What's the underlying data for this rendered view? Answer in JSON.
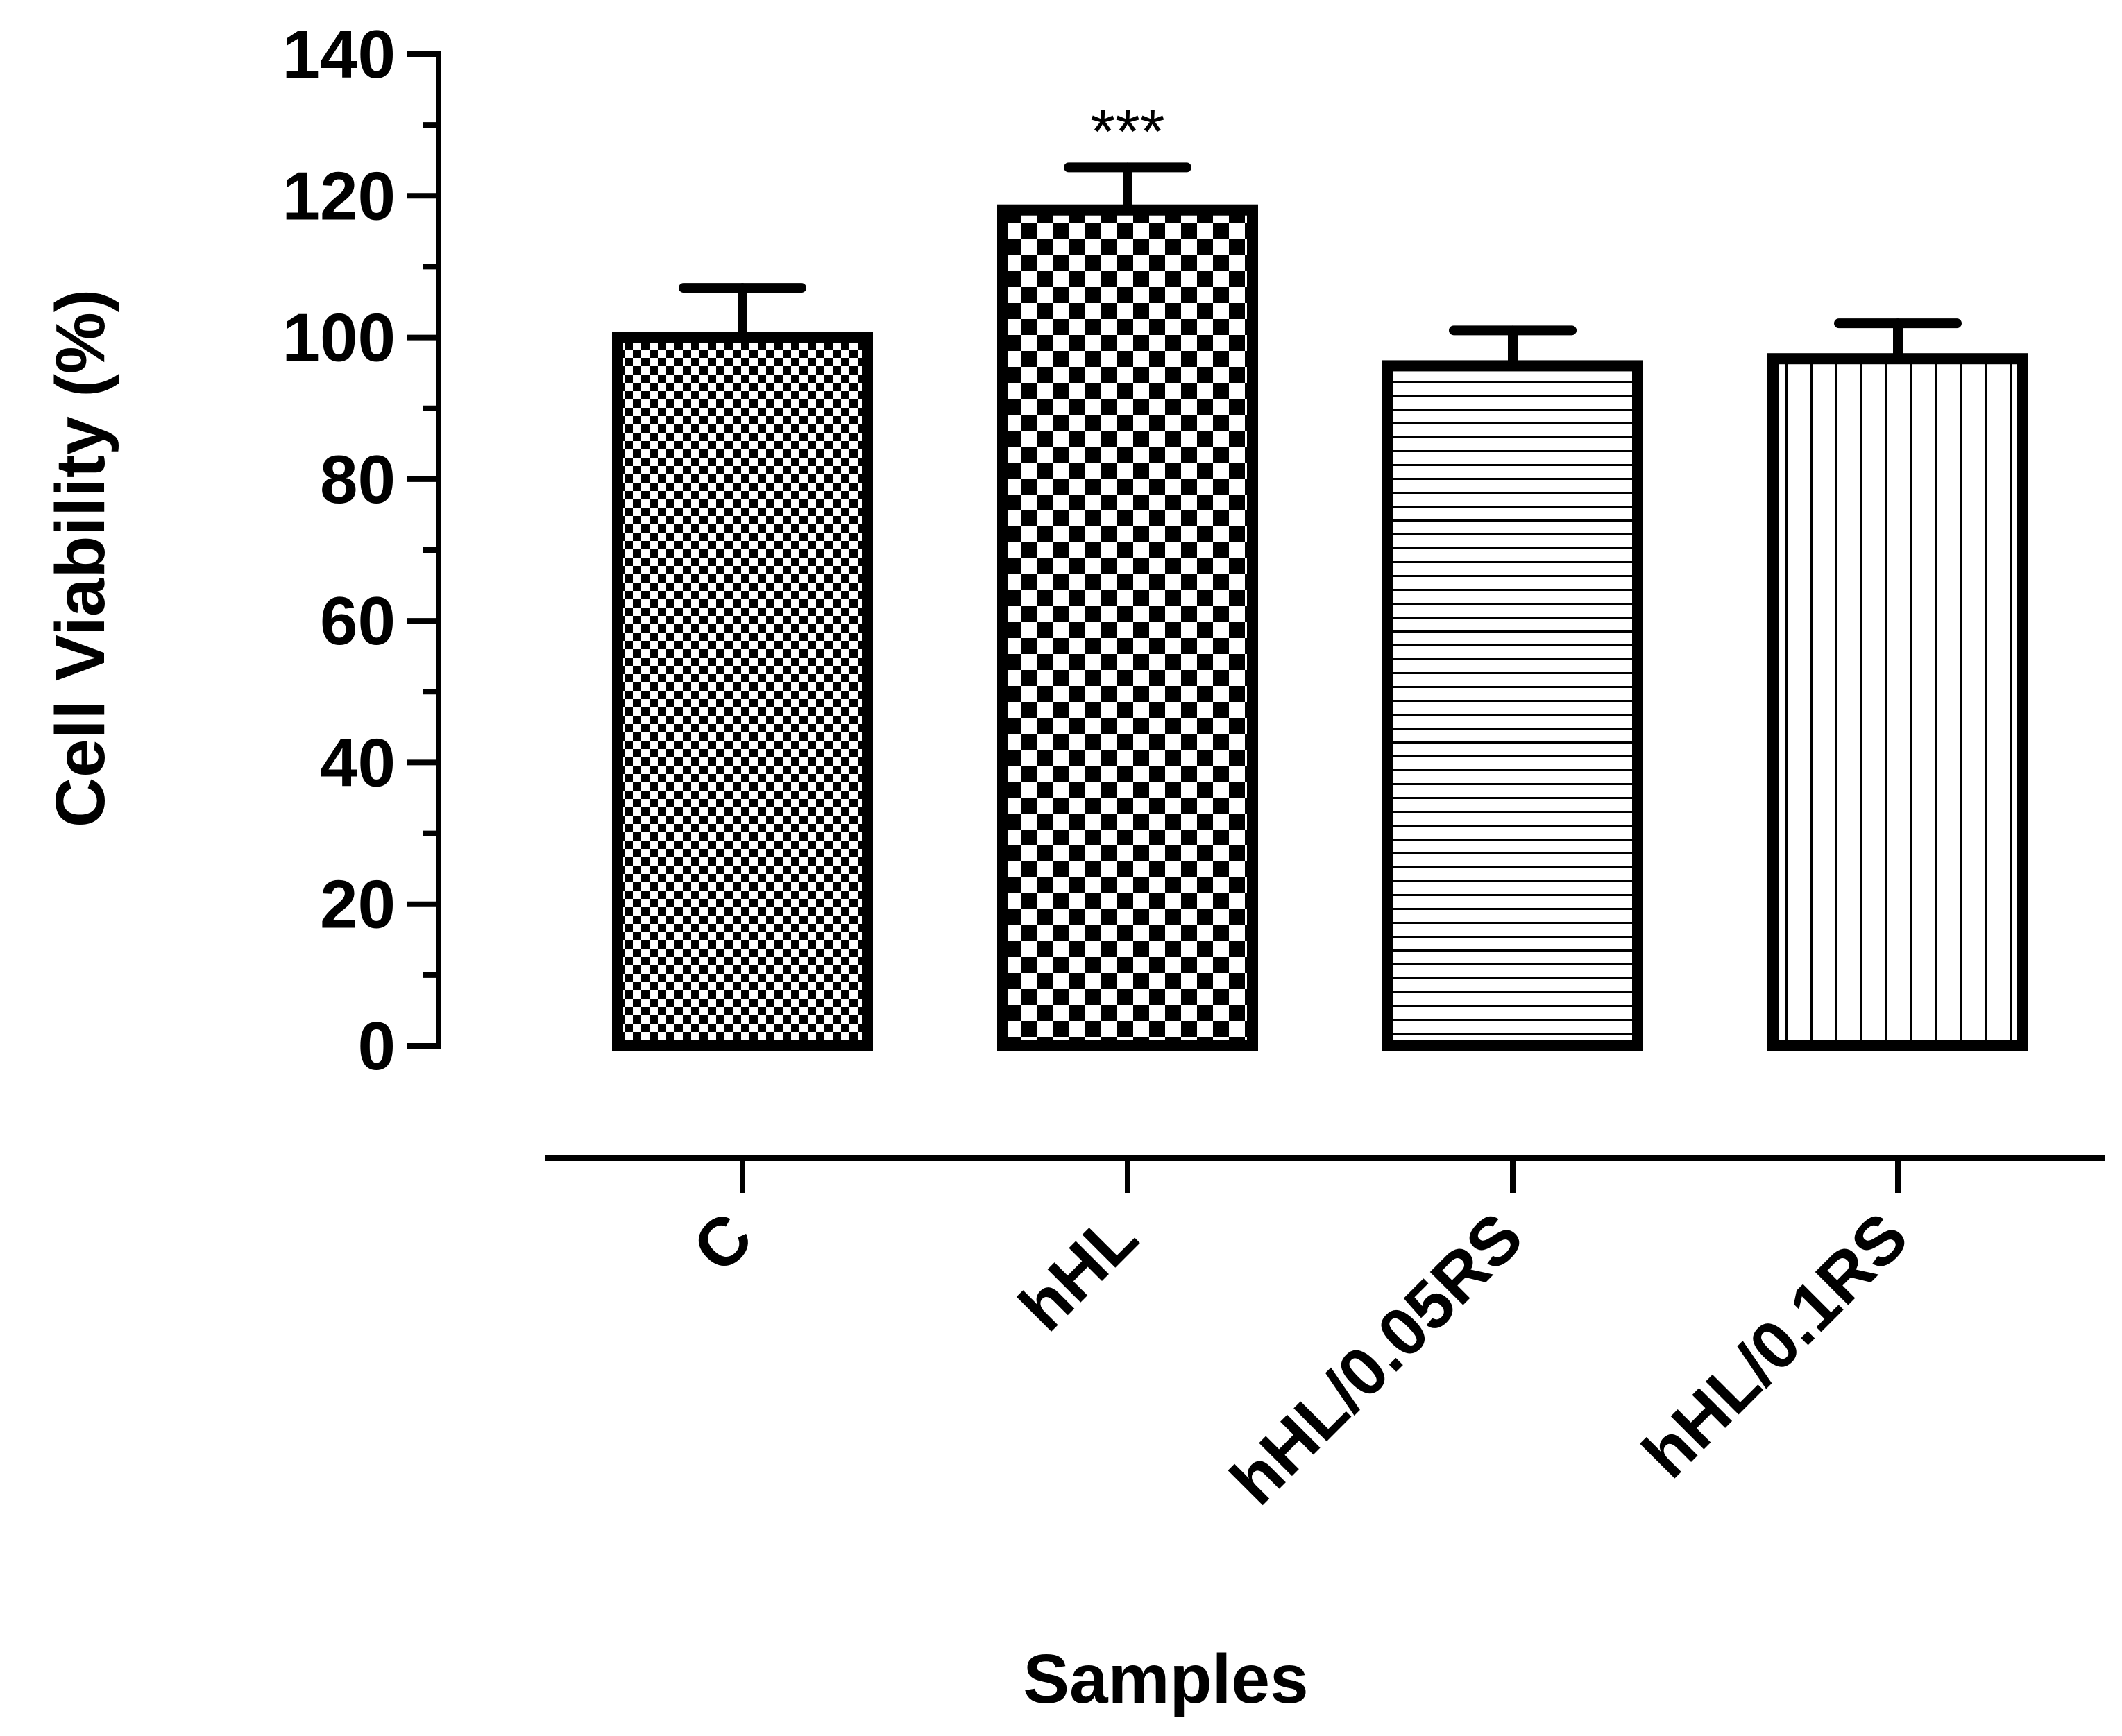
{
  "chart_data": {
    "type": "bar",
    "title": "",
    "xlabel": "Samples",
    "ylabel": "Cell Viability (%)",
    "ylim": [
      0,
      140
    ],
    "yticks": [
      0,
      20,
      40,
      60,
      80,
      100,
      120,
      140
    ],
    "categories": [
      "C",
      "hHL",
      "hHL/0.05RS",
      "hHL/0.1RS"
    ],
    "values": [
      100,
      118,
      96,
      97
    ],
    "errors": [
      7,
      6,
      5,
      5
    ],
    "patterns": [
      "fine-checker",
      "coarse-checker",
      "horizontal-lines",
      "vertical-lines"
    ],
    "annotations": [
      {
        "category": "hHL",
        "text": "***"
      }
    ],
    "colors": {
      "ink": "#000000",
      "fill": "#ffffff"
    }
  }
}
